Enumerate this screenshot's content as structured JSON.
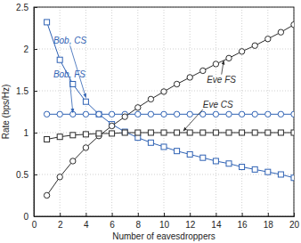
{
  "chart_data": {
    "type": "line",
    "x_label": "Number of eavesdroppers",
    "y_label": "Rate (bps/Hz)",
    "x": [
      1,
      2,
      3,
      4,
      5,
      6,
      7,
      8,
      9,
      10,
      11,
      12,
      13,
      14,
      15,
      16,
      17,
      18,
      19,
      20
    ],
    "series": [
      {
        "name": "Bob, CS",
        "color": "#2f62b4",
        "marker": "square",
        "line_style": "solid",
        "values": [
          2.32,
          1.87,
          1.58,
          1.37,
          1.22,
          1.1,
          1.01,
          0.94,
          0.88,
          0.83,
          0.78,
          0.74,
          0.7,
          0.66,
          0.63,
          0.59,
          0.56,
          0.53,
          0.5,
          0.46
        ]
      },
      {
        "name": "Bob, FS",
        "color": "#2f62b4",
        "marker": "circle",
        "line_style": "solid",
        "values": [
          1.22,
          1.22,
          1.22,
          1.22,
          1.22,
          1.22,
          1.22,
          1.22,
          1.22,
          1.22,
          1.22,
          1.22,
          1.22,
          1.22,
          1.22,
          1.22,
          1.22,
          1.22,
          1.22,
          1.22
        ]
      },
      {
        "name": "Eve FS",
        "color": "#2b2b2b",
        "marker": "circle",
        "line_style": "solid",
        "values": [
          0.25,
          0.47,
          0.66,
          0.82,
          0.96,
          1.08,
          1.19,
          1.3,
          1.4,
          1.49,
          1.58,
          1.66,
          1.74,
          1.82,
          1.89,
          1.97,
          2.04,
          2.12,
          2.2,
          2.29
        ]
      },
      {
        "name": "Eve CS",
        "color": "#2b2b2b",
        "marker": "square",
        "line_style": "solid",
        "values": [
          0.92,
          0.95,
          0.97,
          0.98,
          0.99,
          0.99,
          1.0,
          1.0,
          1.0,
          1.0,
          1.0,
          1.0,
          1.0,
          1.0,
          1.0,
          1.0,
          1.0,
          1.0,
          1.0,
          1.0
        ]
      }
    ],
    "annotations": [
      {
        "text": "Bob, CS",
        "x": 1.5,
        "y": 2.06,
        "arrow_x": 4.0,
        "arrow_y": 1.42,
        "color": "#2f62b4"
      },
      {
        "text": "Bob, FS",
        "x": 1.5,
        "y": 1.66,
        "arrow_x": 3.0,
        "arrow_y": 1.24,
        "color": "#2f62b4"
      },
      {
        "text": "Eve FS",
        "x": 13.3,
        "y": 1.6,
        "arrow_x": 14.6,
        "arrow_y": 1.86,
        "color": "#2b2b2b"
      },
      {
        "text": "Eve CS",
        "x": 13.0,
        "y": 1.3,
        "arrow_x": 11.5,
        "arrow_y": 1.02,
        "color": "#2b2b2b"
      }
    ],
    "xlim": [
      0,
      20
    ],
    "ylim": [
      0,
      2.5
    ],
    "xticks": [
      0,
      2,
      4,
      6,
      8,
      10,
      12,
      14,
      16,
      18,
      20
    ],
    "yticks": [
      0,
      0.5,
      1,
      1.5,
      2,
      2.5
    ],
    "grid": true
  }
}
